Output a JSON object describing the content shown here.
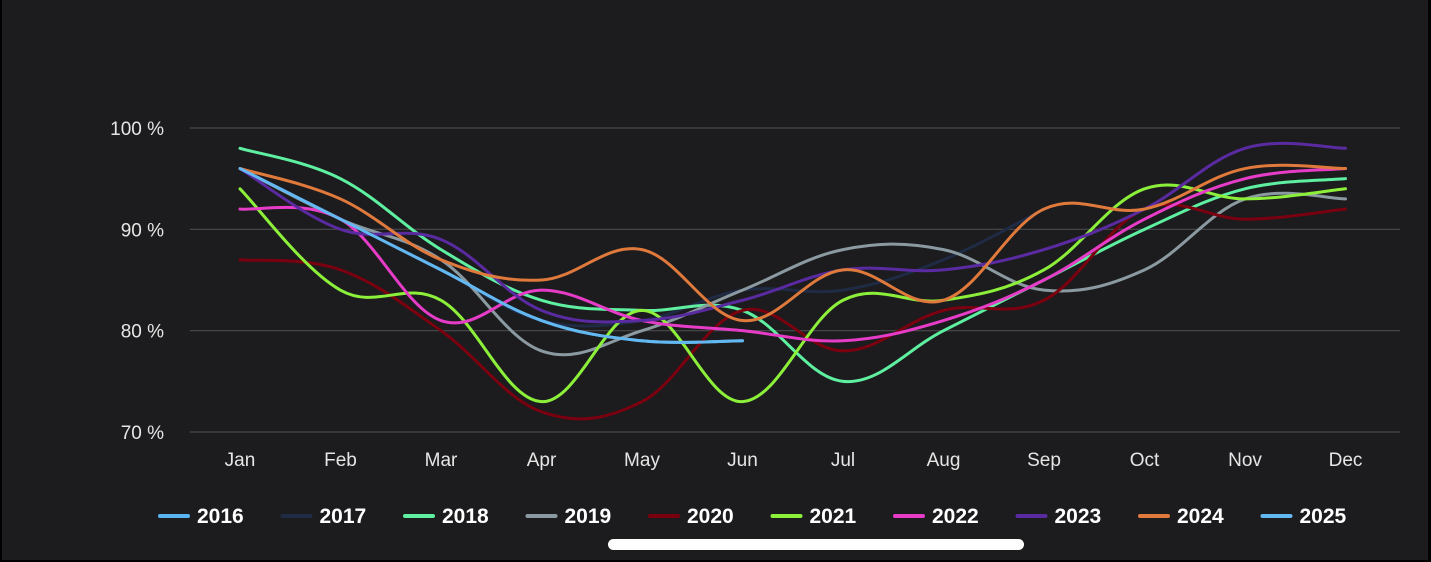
{
  "chart_data": {
    "type": "line",
    "title": "",
    "xlabel": "",
    "ylabel": "",
    "categories": [
      "Jan",
      "Feb",
      "Mar",
      "Apr",
      "May",
      "Jun",
      "Jul",
      "Aug",
      "Sep",
      "Oct",
      "Nov",
      "Dec"
    ],
    "ylim": [
      70,
      100
    ],
    "y_ticks": [
      {
        "value": 70,
        "label": "70 %"
      },
      {
        "value": 80,
        "label": "80 %"
      },
      {
        "value": 90,
        "label": "90 %"
      },
      {
        "value": 100,
        "label": "100 %"
      }
    ],
    "grid": true,
    "legend_position": "bottom",
    "series": [
      {
        "name": "2016",
        "color": "#5ab4f0",
        "values": [
          96,
          91,
          86,
          81,
          79,
          79,
          null,
          null,
          null,
          null,
          null,
          null
        ]
      },
      {
        "name": "2017",
        "color": "#1f2a44",
        "values": [
          96,
          91,
          86,
          81,
          81,
          84,
          84,
          87,
          92,
          null,
          null,
          null
        ]
      },
      {
        "name": "2018",
        "color": "#5ef0a0",
        "values": [
          98,
          95,
          88,
          83,
          82,
          82,
          75,
          80,
          85,
          90,
          94,
          95
        ]
      },
      {
        "name": "2019",
        "color": "#8a9aa0",
        "values": [
          96,
          91,
          87,
          78,
          80,
          84,
          88,
          88,
          84,
          86,
          93,
          93
        ]
      },
      {
        "name": "2020",
        "color": "#7a0010",
        "values": [
          87,
          86,
          80,
          72,
          73,
          82,
          78,
          82,
          83,
          92,
          91,
          92
        ]
      },
      {
        "name": "2021",
        "color": "#8cf03a",
        "values": [
          94,
          84,
          83,
          73,
          82,
          73,
          83,
          83,
          86,
          94,
          93,
          94
        ]
      },
      {
        "name": "2022",
        "color": "#e63cc8",
        "values": [
          92,
          91,
          81,
          84,
          81,
          80,
          79,
          81,
          85,
          91,
          95,
          96
        ]
      },
      {
        "name": "2023",
        "color": "#5a2aa0",
        "values": [
          96,
          90,
          89,
          82,
          81,
          83,
          86,
          86,
          88,
          92,
          98,
          98
        ]
      },
      {
        "name": "2024",
        "color": "#e07a3c",
        "values": [
          96,
          93,
          87,
          85,
          88,
          81,
          86,
          83,
          92,
          92,
          96,
          96
        ]
      },
      {
        "name": "2025",
        "color": "#64b8f2",
        "values": [
          96,
          91,
          86,
          81,
          79,
          79,
          null,
          null,
          null,
          null,
          null,
          null
        ]
      }
    ]
  }
}
